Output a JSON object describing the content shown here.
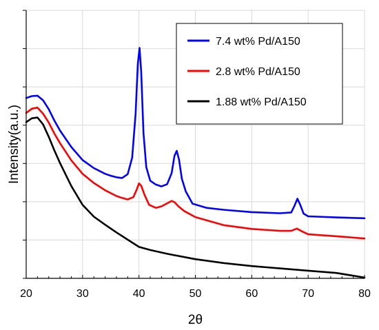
{
  "chart_data": {
    "type": "line",
    "title": "",
    "xlabel": "2θ",
    "ylabel": "Intensity(a.u.)",
    "xlim": [
      20,
      80
    ],
    "ylim": [
      0,
      7
    ],
    "x_ticks": [
      20,
      30,
      40,
      50,
      60,
      70,
      80
    ],
    "y_tick_labels_shown": false,
    "grid": true,
    "legend_position": "top-right",
    "series": [
      {
        "name": "7.4 wt% Pd/A150",
        "color": "#0000ff",
        "x": [
          20,
          21,
          22,
          23,
          24,
          25,
          26,
          28,
          30,
          32,
          34,
          35,
          36,
          37,
          38,
          38.8,
          39.4,
          39.8,
          40.1,
          40.4,
          40.8,
          41.3,
          42,
          43,
          44,
          45,
          45.8,
          46.3,
          46.7,
          47.1,
          47.6,
          48.3,
          49.5,
          52,
          55,
          60,
          65,
          67,
          67.6,
          68.1,
          68.6,
          69.2,
          70,
          75,
          80
        ],
        "values": [
          4.71,
          4.76,
          4.77,
          4.65,
          4.42,
          4.12,
          3.86,
          3.43,
          3.09,
          2.88,
          2.73,
          2.68,
          2.64,
          2.62,
          2.72,
          3.15,
          4.3,
          5.6,
          6.02,
          5.4,
          3.8,
          2.9,
          2.55,
          2.45,
          2.4,
          2.46,
          2.75,
          3.2,
          3.33,
          3.1,
          2.6,
          2.27,
          1.95,
          1.84,
          1.79,
          1.73,
          1.7,
          1.72,
          1.9,
          2.08,
          1.92,
          1.69,
          1.62,
          1.59,
          1.57
        ]
      },
      {
        "name": "2.8 wt% Pd/A150",
        "color": "#ff0000",
        "x": [
          20,
          21,
          22,
          23,
          24,
          25,
          26,
          28,
          30,
          32,
          34,
          36,
          37,
          38,
          39,
          39.6,
          40,
          40.4,
          41,
          41.8,
          43,
          44,
          45,
          45.8,
          46.3,
          47,
          48,
          50,
          55,
          60,
          65,
          67,
          68,
          69,
          70,
          75,
          80
        ],
        "values": [
          4.32,
          4.43,
          4.46,
          4.3,
          4.07,
          3.78,
          3.53,
          3.08,
          2.73,
          2.49,
          2.3,
          2.15,
          2.1,
          2.06,
          2.12,
          2.32,
          2.48,
          2.42,
          2.18,
          1.92,
          1.84,
          1.88,
          1.96,
          2.02,
          1.99,
          1.88,
          1.76,
          1.6,
          1.39,
          1.29,
          1.24,
          1.24,
          1.3,
          1.22,
          1.15,
          1.1,
          1.04
        ]
      },
      {
        "name": "1.88 wt% Pd/A150",
        "color": "#000000",
        "x": [
          20,
          21,
          22,
          23,
          24,
          25,
          26,
          28,
          30,
          32,
          34,
          36,
          38,
          40,
          42,
          45,
          50,
          55,
          60,
          65,
          70,
          75,
          80
        ],
        "values": [
          4.08,
          4.18,
          4.2,
          4.02,
          3.7,
          3.34,
          3.01,
          2.41,
          1.92,
          1.61,
          1.4,
          1.2,
          1.01,
          0.82,
          0.74,
          0.64,
          0.5,
          0.4,
          0.32,
          0.26,
          0.2,
          0.14,
          0.02
        ]
      }
    ]
  }
}
